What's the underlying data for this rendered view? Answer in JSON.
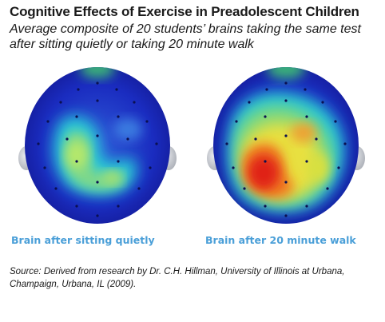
{
  "header": {
    "title": "Cognitive Effects of Exercise in Preadolescent Children",
    "subtitle": "Average composite of 20 students’ brains taking the same test after sitting quietly or taking 20 minute walk"
  },
  "figure": {
    "left_caption": "Brain after sitting quietly",
    "right_caption": "Brain after 20 minute walk"
  },
  "source": "Source: Derived from research by Dr. C.H. Hillman, University of Illinois at Urbana, Champaign, Urbana, IL (2009).",
  "colors": {
    "caption": "#4a9fd8",
    "heatmap_low": "#1a22b8",
    "heatmap_mid": "#22d4c8",
    "heatmap_high": "#e81a1a"
  }
}
